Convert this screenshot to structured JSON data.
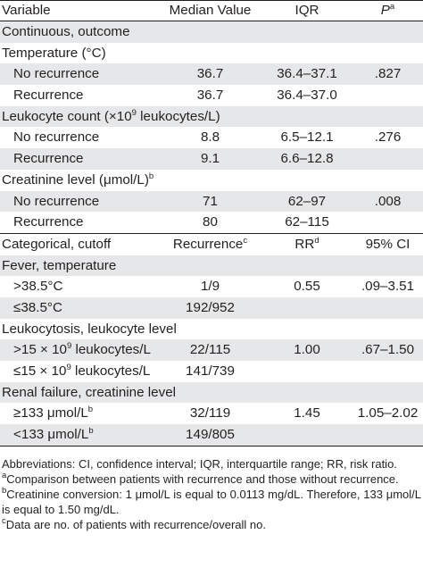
{
  "header": {
    "variable": "Variable",
    "median_value": "Median Value",
    "iqr": "IQR",
    "p": "P",
    "p_sup": "a"
  },
  "rows": [
    {
      "label": "Continuous, outcome"
    },
    {
      "label": "Temperature (°C)"
    },
    {
      "label": "No recurrence",
      "v1": "36.7",
      "v2": "36.4–37.1",
      "v3": ".827"
    },
    {
      "label": "Recurrence",
      "v1": "36.7",
      "v2": "36.4–37.0",
      "v3": ""
    },
    {
      "label_pre": "Leukocyte count (×10",
      "label_sup": "9",
      "label_post": " leukocytes/L)"
    },
    {
      "label": "No recurrence",
      "v1": "8.8",
      "v2": "6.5–12.1",
      "v3": ".276"
    },
    {
      "label": "Recurrence",
      "v1": "9.1",
      "v2": "6.6–12.8",
      "v3": ""
    },
    {
      "label_pre": "Creatinine level (μmol/L)",
      "label_sup": "b"
    },
    {
      "label": "No recurrence",
      "v1": "71",
      "v2": "62–97",
      "v3": ".008"
    },
    {
      "label": "Recurrence",
      "v1": "80",
      "v2": "62–115",
      "v3": ""
    }
  ],
  "header2": {
    "categorical": "Categorical, cutoff",
    "recurrence": "Recurrence",
    "recurrence_sup": "c",
    "rr": "RR",
    "rr_sup": "d",
    "ci": "95% CI"
  },
  "rows2": [
    {
      "label": "Fever, temperature"
    },
    {
      "label": ">38.5°C",
      "v1": "1/9",
      "v2": "0.55",
      "v3": ".09–3.51"
    },
    {
      "label": "≤38.5°C",
      "v1": "192/952",
      "v2": "",
      "v3": ""
    },
    {
      "label": "Leukocytosis, leukocyte level"
    },
    {
      "label_pre": ">15 × 10",
      "label_sup": "9",
      "label_post": " leukocytes/L",
      "v1": "22/115",
      "v2": "1.00",
      "v3": ".67–1.50"
    },
    {
      "label_pre": "≤15 × 10",
      "label_sup": "9",
      "label_post": " leukocytes/L",
      "v1": "141/739",
      "v2": "",
      "v3": ""
    },
    {
      "label": "Renal failure, creatinine level"
    },
    {
      "label_pre": "≥133 μmol/L",
      "label_sup": "b",
      "v1": "32/119",
      "v2": "1.45",
      "v3": "1.05–2.02"
    },
    {
      "label_pre": "<133 μmol/L",
      "label_sup": "b",
      "v1": "149/805",
      "v2": "",
      "v3": ""
    }
  ],
  "footnotes": {
    "abbreviations": "Abbreviations: CI, confidence interval; IQR, interquartile range; RR, risk ratio.",
    "a_mark": "a",
    "a_text": "Comparison between patients with recurrence and those without recurrence.",
    "b_mark": "b",
    "b_text": "Creatinine conversion: 1 μmol/L is equal to 0.0113 mg/dL. Therefore, 133 μmol/L is equal to 1.50 mg/dL.",
    "c_mark": "c",
    "c_text": "Data are no. of patients with recurrence/overall no."
  }
}
